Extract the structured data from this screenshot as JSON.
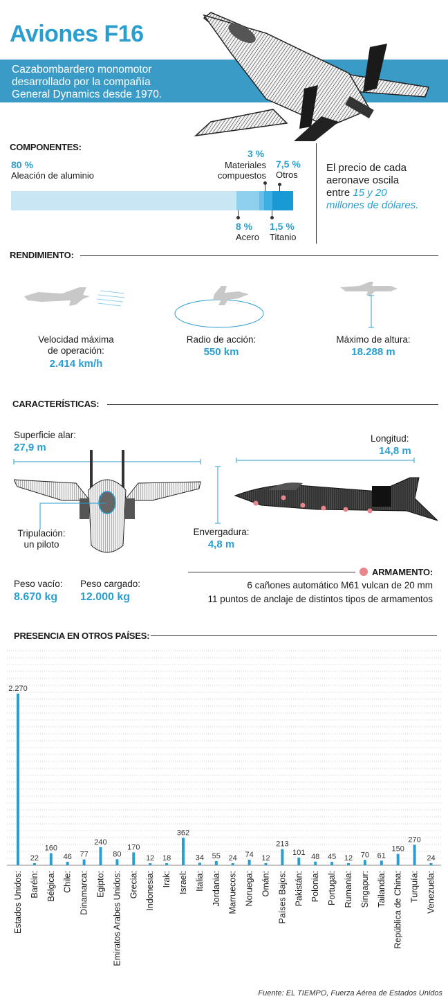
{
  "header": {
    "title": "Aviones F16",
    "subtitle_lines": [
      "Cazabombardero monomotor",
      "desarrollado por la compañía",
      "General Dynamics desde 1970."
    ],
    "accent_color": "#3a9cc6"
  },
  "components": {
    "title": "COMPONENTES:",
    "aluminio": {
      "pct": "80 %",
      "label": "Aleación de aluminio"
    },
    "compuestos": {
      "pct": "3 %",
      "label_1": "Materiales",
      "label_2": "compuestos"
    },
    "otros": {
      "pct": "7,5 %",
      "label": "Otros"
    },
    "acero": {
      "pct": "8 %",
      "label": "Acero"
    },
    "titanio": {
      "pct": "1,5 %",
      "label": "Titanio"
    },
    "price_lines": [
      "El precio de cada",
      "aeronave oscila",
      "entre "
    ],
    "price_highlight_1": "15 y 20",
    "price_highlight_2": "millones de dólares."
  },
  "performance": {
    "title": "RENDIMIENTO:",
    "speed_label_1": "Velocidad máxima",
    "speed_label_2": "de operación:",
    "speed_value": "2.414 km/h",
    "range_label": "Radio de acción:",
    "range_value": "550 km",
    "altitude_label": "Máximo de altura:",
    "altitude_value": "18.288 m"
  },
  "characteristics": {
    "title": "CARACTERÍSTICAS:",
    "wing_area_label": "Superficie alar:",
    "wing_area_value": "27,9 m",
    "length_label": "Longitud:",
    "length_value": "14,8 m",
    "crew_label_1": "Tripulación:",
    "crew_label_2": "un piloto",
    "span_label": "Envergadura:",
    "span_value": "4,8 m",
    "empty_weight_label": "Peso vacío:",
    "empty_weight_value": "8.670 kg",
    "loaded_weight_label": "Peso cargado:",
    "loaded_weight_value": "12.000 kg",
    "armament_title": "ARMAMENTO:",
    "armament_line_1": "6 cañones automático M61 vulcan de 20 mm",
    "armament_line_2": "11 puntos de anclaje de distintos tipos de armamentos",
    "armament_color": "#e8868c"
  },
  "presence": {
    "title": "PRESENCIA EN OTROS PAÍSES:"
  },
  "chart_data": {
    "type": "bar",
    "title": "PRESENCIA EN OTROS PAÍSES:",
    "categories": [
      "Estados Unidos:",
      "Baréin:",
      "Bélgica:",
      "Chile:",
      "Dinamarca:",
      "Egipto:",
      "Emiratos Arabes Unidos:",
      "Grecia:",
      "Indonesia:",
      "Irak:",
      "Israel:",
      "Italia:",
      "Jordania:",
      "Marruecos:",
      "Noruega:",
      "Omán:",
      "Países Bajos:",
      "Pakistán:",
      "Polonia:",
      "Portugal:",
      "Rumania:",
      "Singapur:",
      "Tailandia:",
      "República de China:",
      "Turquía:",
      "Venezuela:"
    ],
    "values": [
      2270,
      22,
      160,
      46,
      77,
      240,
      80,
      170,
      12,
      18,
      362,
      34,
      55,
      24,
      74,
      12,
      213,
      101,
      48,
      45,
      12,
      70,
      61,
      150,
      270,
      24
    ],
    "value_labels": [
      "2.270",
      "22",
      "160",
      "46",
      "77",
      "240",
      "80",
      "170",
      "12",
      "18",
      "362",
      "34",
      "55",
      "24",
      "74",
      "12",
      "213",
      "101",
      "48",
      "45",
      "12",
      "70",
      "61",
      "150",
      "270",
      "24"
    ],
    "ylim": [
      0,
      2270
    ],
    "grid": true,
    "bar_color": "#2a9fcf"
  },
  "footer": {
    "source": "Fuente: EL TIEMPO, Fuerza Aérea de Estados Unidos"
  }
}
